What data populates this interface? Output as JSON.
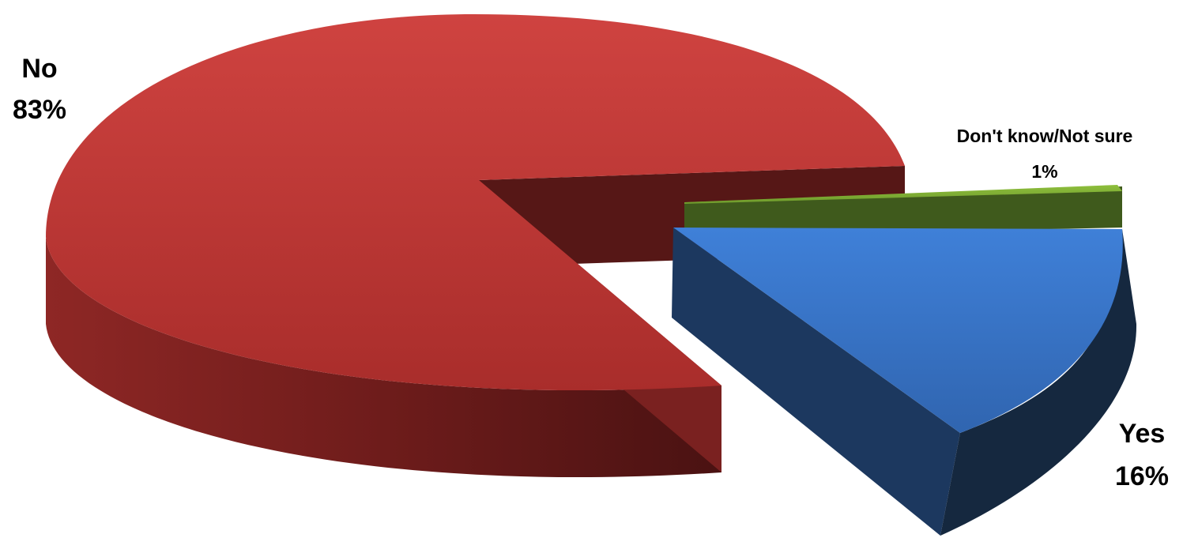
{
  "chart_data": {
    "type": "pie",
    "style": "3d-exploded",
    "slices": [
      {
        "name": "No",
        "label": "No",
        "percent_label": "83%",
        "value": 83,
        "color": "#c23a38",
        "side_color": "#7d2220"
      },
      {
        "name": "Yes",
        "label": "Yes",
        "percent_label": "16%",
        "value": 16,
        "color": "#3b7ad0",
        "side_color": "#1f3e68"
      },
      {
        "name": "Don't know/Not sure",
        "label": "Don't know/Not sure",
        "percent_label": "1%",
        "value": 1,
        "color": "#7fab35",
        "side_color": "#3f5a1c"
      }
    ],
    "legend": "none"
  }
}
